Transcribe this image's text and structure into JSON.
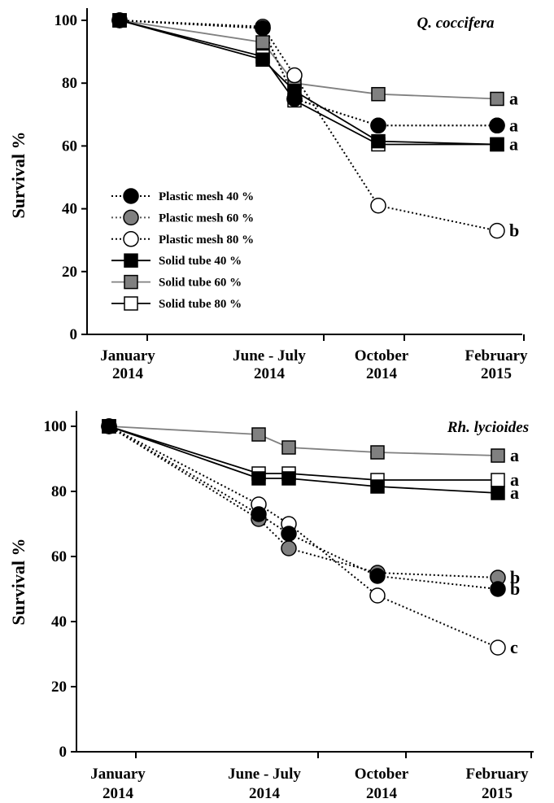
{
  "chart_data": [
    {
      "type": "line",
      "title": "Q. coccifera",
      "ylabel": "Survival %",
      "ylim": [
        0,
        100
      ],
      "yticks": [
        0,
        20,
        40,
        60,
        80,
        100
      ],
      "x_categories": [
        {
          "line1": "January",
          "line2": "2014"
        },
        {
          "line1": "June - July",
          "line2": "2014"
        },
        {
          "line1": "October",
          "line2": "2014"
        },
        {
          "line1": "February",
          "line2": "2015"
        }
      ],
      "legend": "left-middle",
      "series": [
        {
          "name": "Plastic mesh 40 %",
          "marker": "circle",
          "fill": "#000000",
          "line": "dotted",
          "line_color": "#000000",
          "points": [
            [
              "Jan 2014",
              100
            ],
            [
              "Jun 2014",
              97.5
            ],
            [
              "Jul 2014",
              75
            ],
            [
              "Oct 2014",
              66.5
            ],
            [
              "Feb 2015",
              66.5
            ]
          ],
          "letter": "a"
        },
        {
          "name": "Plastic mesh 60 %",
          "marker": "circle",
          "fill": "#808080",
          "line": "dotted",
          "line_color": "#555555",
          "points": [
            [
              "Jan 2014",
              100
            ],
            [
              "Jun 2014",
              97.5
            ],
            [
              "Jul 2014",
              75
            ],
            [
              "Oct 2014",
              66.5
            ],
            [
              "Feb 2015",
              66.5
            ]
          ],
          "letter": ""
        },
        {
          "name": "Plastic mesh 80 %",
          "marker": "circle",
          "fill": "#ffffff",
          "line": "dotted",
          "line_color": "#000000",
          "points": [
            [
              "Jan 2014",
              100
            ],
            [
              "Jun 2014",
              98
            ],
            [
              "Jul 2014",
              82.5
            ],
            [
              "Oct 2014",
              41
            ],
            [
              "Feb 2015",
              33
            ]
          ],
          "letter": "b"
        },
        {
          "name": "Solid tube 40 %",
          "marker": "square",
          "fill": "#000000",
          "line": "solid",
          "line_color": "#000000",
          "points": [
            [
              "Jan 2014",
              100
            ],
            [
              "Jun 2014",
              87.5
            ],
            [
              "Jul 2014",
              77.5
            ],
            [
              "Oct 2014",
              61.5
            ],
            [
              "Feb 2015",
              60.5
            ]
          ],
          "letter": ""
        },
        {
          "name": "Solid tube 60 %",
          "marker": "square",
          "fill": "#808080",
          "line": "solid",
          "line_color": "#808080",
          "points": [
            [
              "Jan 2014",
              100
            ],
            [
              "Jun 2014",
              93
            ],
            [
              "Jul 2014",
              80
            ],
            [
              "Oct 2014",
              76.5
            ],
            [
              "Feb 2015",
              75
            ]
          ],
          "letter": "a"
        },
        {
          "name": "Solid tube 80 %",
          "marker": "square",
          "fill": "#ffffff",
          "line": "solid",
          "line_color": "#000000",
          "points": [
            [
              "Jan 2014",
              100
            ],
            [
              "Jun 2014",
              88.5
            ],
            [
              "Jul 2014",
              74.5
            ],
            [
              "Oct 2014",
              60.5
            ],
            [
              "Feb 2015",
              60.5
            ]
          ],
          "letter": "a"
        }
      ]
    },
    {
      "type": "line",
      "title": "Rh. lycioides",
      "ylabel": "Survival %",
      "ylim": [
        0,
        100
      ],
      "yticks": [
        0,
        20,
        40,
        60,
        80,
        100
      ],
      "x_categories": [
        {
          "line1": "January",
          "line2": "2014"
        },
        {
          "line1": "June - July",
          "line2": "2014"
        },
        {
          "line1": "October",
          "line2": "2014"
        },
        {
          "line1": "February",
          "line2": "2015"
        }
      ],
      "legend": "none",
      "series": [
        {
          "name": "Plastic mesh 40 %",
          "marker": "circle",
          "fill": "#000000",
          "line": "dotted",
          "line_color": "#000000",
          "points": [
            [
              "Jan 2014",
              100
            ],
            [
              "Jun 2014",
              73
            ],
            [
              "Jul 2014",
              67
            ],
            [
              "Oct 2014",
              54
            ],
            [
              "Feb 2015",
              50
            ]
          ],
          "letter": "b"
        },
        {
          "name": "Plastic mesh 60 %",
          "marker": "circle",
          "fill": "#808080",
          "line": "dotted",
          "line_color": "#000000",
          "points": [
            [
              "Jan 2014",
              100
            ],
            [
              "Jun 2014",
              71.5
            ],
            [
              "Jul 2014",
              62.5
            ],
            [
              "Oct 2014",
              55
            ],
            [
              "Feb 2015",
              53.5
            ]
          ],
          "letter": "b"
        },
        {
          "name": "Plastic mesh 80 %",
          "marker": "circle",
          "fill": "#ffffff",
          "line": "dotted",
          "line_color": "#000000",
          "points": [
            [
              "Jan 2014",
              100
            ],
            [
              "Jun 2014",
              76
            ],
            [
              "Jul 2014",
              70
            ],
            [
              "Oct 2014",
              48
            ],
            [
              "Feb 2015",
              32
            ]
          ],
          "letter": "c"
        },
        {
          "name": "Solid tube 40 %",
          "marker": "square",
          "fill": "#000000",
          "line": "solid",
          "line_color": "#000000",
          "points": [
            [
              "Jan 2014",
              100
            ],
            [
              "Jun 2014",
              84
            ],
            [
              "Jul 2014",
              84
            ],
            [
              "Oct 2014",
              81.5
            ],
            [
              "Feb 2015",
              79.5
            ]
          ],
          "letter": "a"
        },
        {
          "name": "Solid tube 60 %",
          "marker": "square",
          "fill": "#808080",
          "line": "solid",
          "line_color": "#808080",
          "points": [
            [
              "Jan 2014",
              100
            ],
            [
              "Jun 2014",
              97.5
            ],
            [
              "Jul 2014",
              93.5
            ],
            [
              "Oct 2014",
              92
            ],
            [
              "Feb 2015",
              91
            ]
          ],
          "letter": "a"
        },
        {
          "name": "Solid tube 80 %",
          "marker": "square",
          "fill": "#ffffff",
          "line": "solid",
          "line_color": "#000000",
          "points": [
            [
              "Jan 2014",
              100
            ],
            [
              "Jun 2014",
              85.5
            ],
            [
              "Jul 2014",
              85.5
            ],
            [
              "Oct 2014",
              83.5
            ],
            [
              "Feb 2015",
              83.5
            ]
          ],
          "letter": "a"
        }
      ]
    }
  ]
}
